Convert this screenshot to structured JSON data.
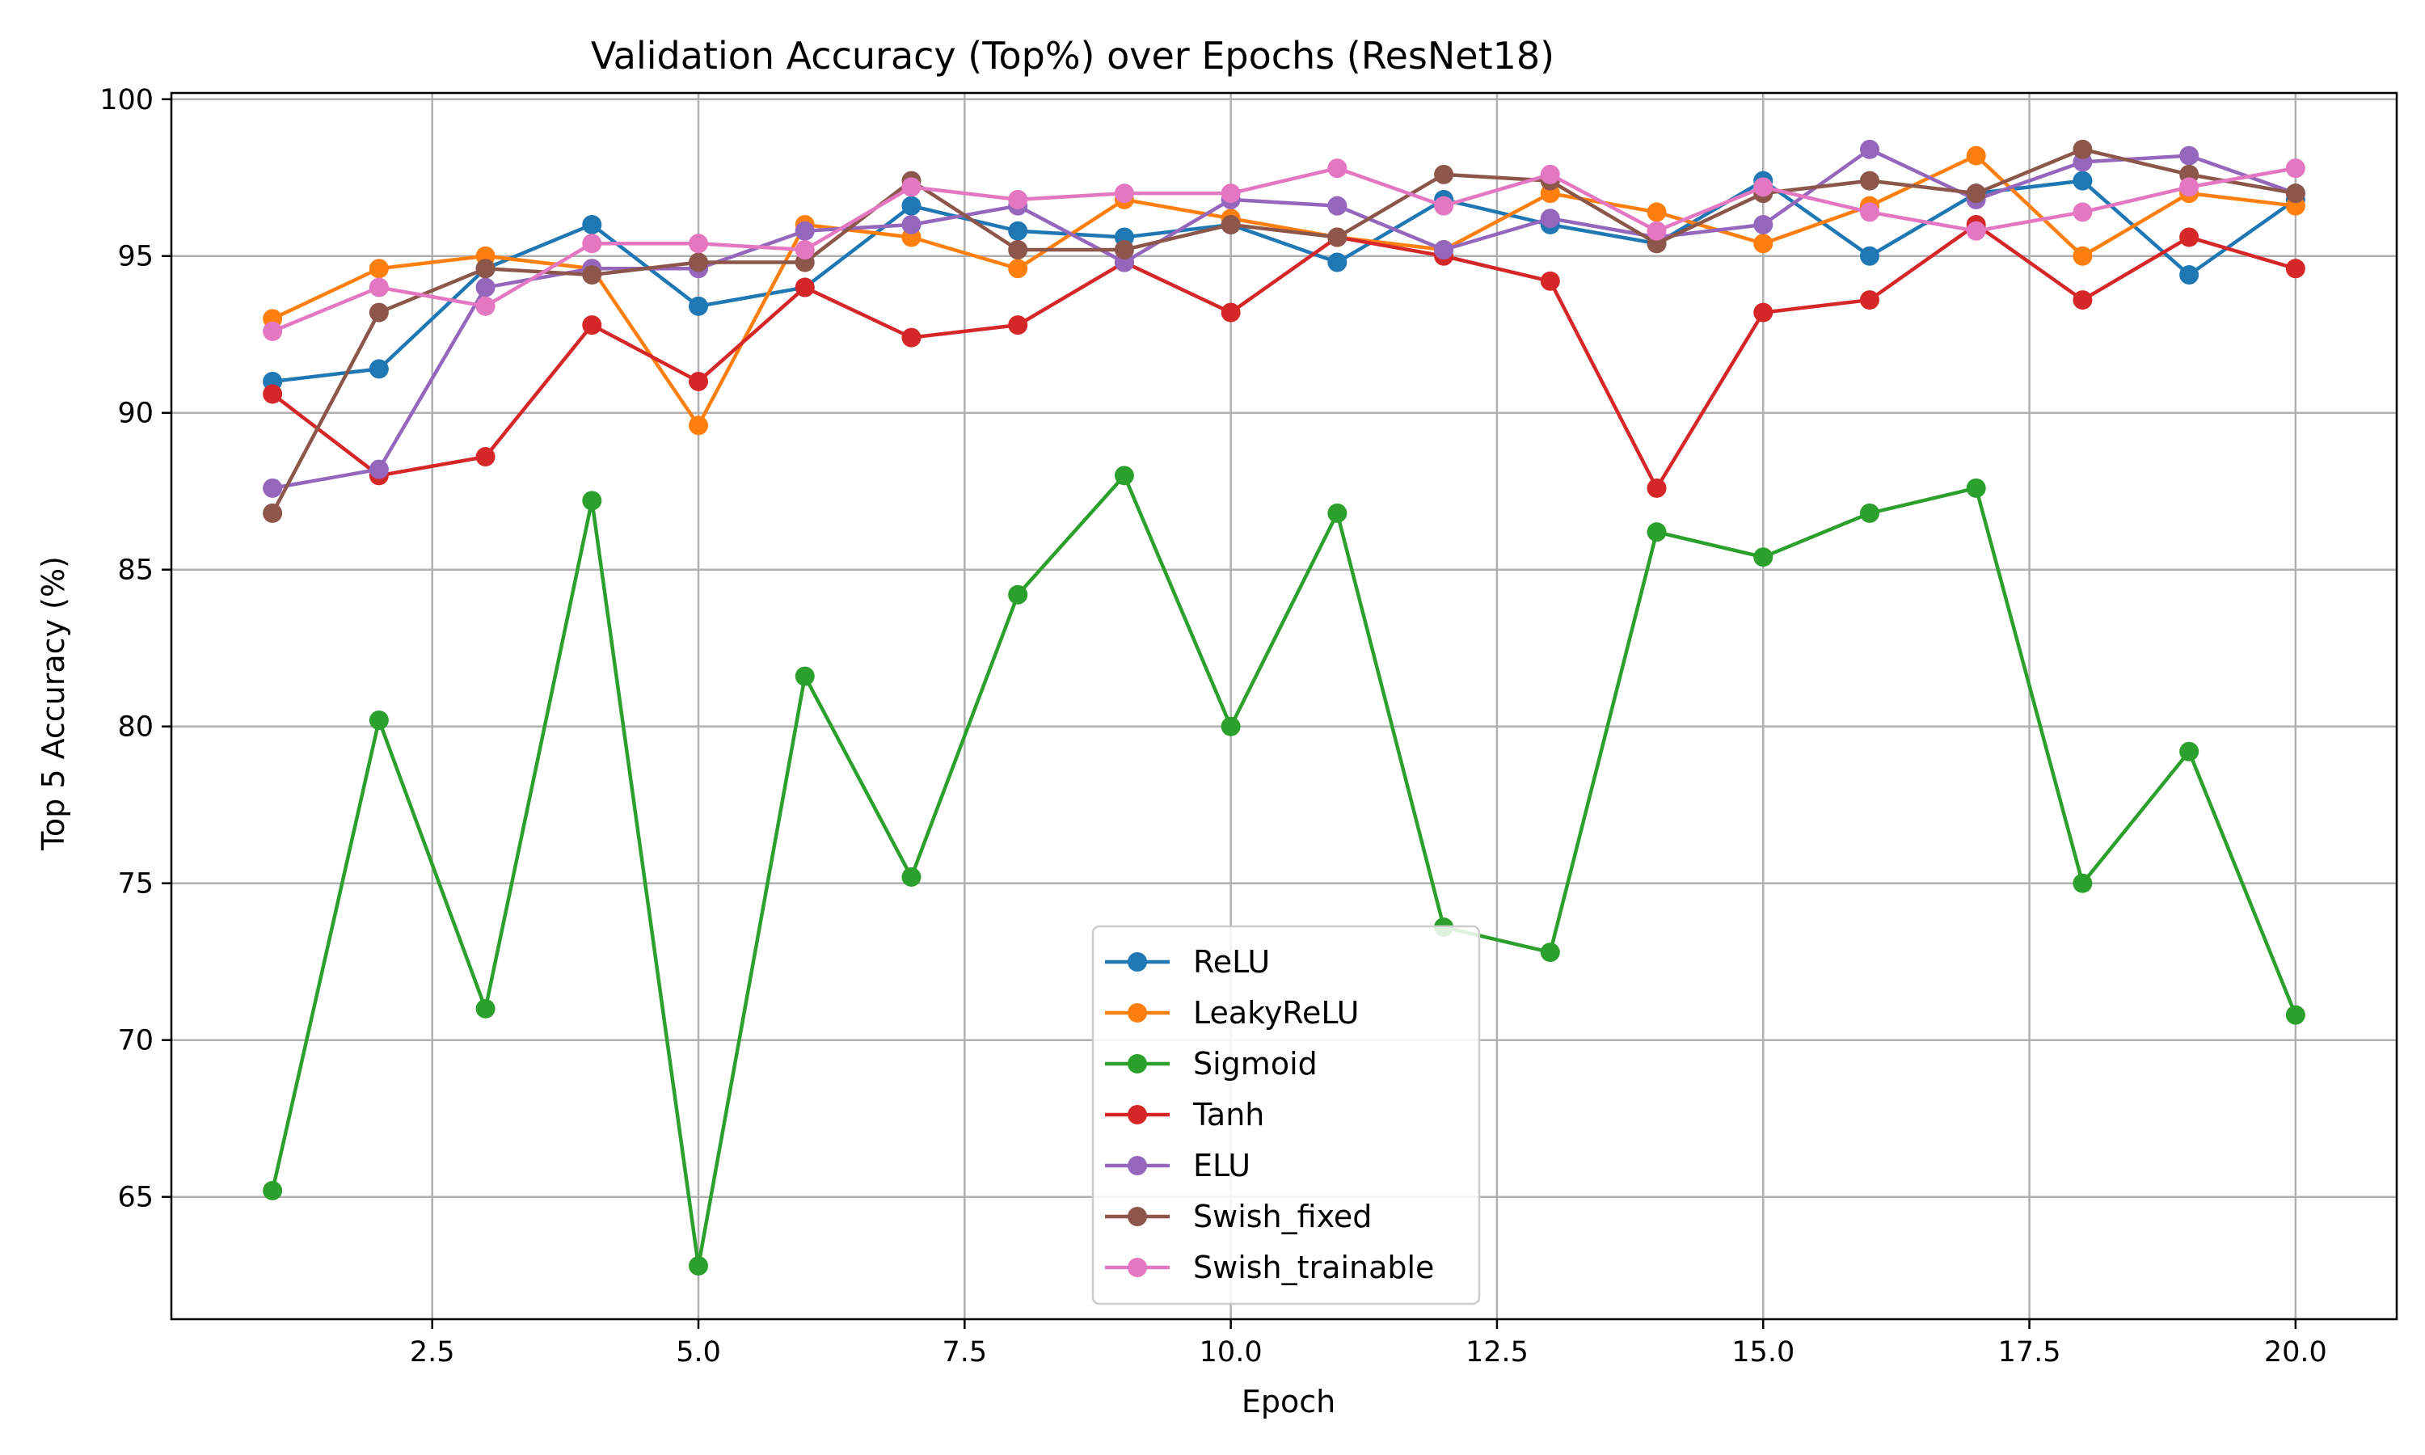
{
  "chart_data": {
    "type": "line",
    "title": "Validation Accuracy (Top%) over Epochs (ResNet18)",
    "xlabel": "Epoch",
    "ylabel": "Top 5 Accuracy (%)",
    "xlim": [
      0.05,
      20.95
    ],
    "ylim": [
      61.1,
      100.2
    ],
    "x_ticks": [
      2.5,
      5.0,
      7.5,
      10.0,
      12.5,
      15.0,
      17.5,
      20.0
    ],
    "x_tick_labels": [
      "2.5",
      "5.0",
      "7.5",
      "10.0",
      "12.5",
      "15.0",
      "17.5",
      "20.0"
    ],
    "y_ticks": [
      65,
      70,
      75,
      80,
      85,
      90,
      95,
      100
    ],
    "y_tick_labels": [
      "65",
      "70",
      "75",
      "80",
      "85",
      "90",
      "95",
      "100"
    ],
    "grid": true,
    "legend_position": "lower-center",
    "x": [
      1,
      2,
      3,
      4,
      5,
      6,
      7,
      8,
      9,
      10,
      11,
      12,
      13,
      14,
      15,
      16,
      17,
      18,
      19,
      20
    ],
    "series": [
      {
        "name": "ReLU",
        "color": "#1f77b4",
        "values": [
          91.0,
          91.4,
          94.6,
          96.0,
          93.4,
          94.0,
          96.6,
          95.8,
          95.6,
          96.0,
          94.8,
          96.8,
          96.0,
          95.4,
          97.4,
          95.0,
          97.0,
          97.4,
          94.4,
          96.8
        ]
      },
      {
        "name": "LeakyReLU",
        "color": "#ff7f0e",
        "values": [
          93.0,
          94.6,
          95.0,
          94.6,
          89.6,
          96.0,
          95.6,
          94.6,
          96.8,
          96.2,
          95.6,
          95.2,
          97.0,
          96.4,
          95.4,
          96.6,
          98.2,
          95.0,
          97.0,
          96.6
        ]
      },
      {
        "name": "Sigmoid",
        "color": "#2ca02c",
        "values": [
          65.2,
          80.2,
          71.0,
          87.2,
          62.8,
          81.6,
          75.2,
          84.2,
          88.0,
          80.0,
          86.8,
          73.6,
          72.8,
          86.2,
          85.4,
          86.8,
          87.6,
          75.0,
          79.2,
          70.8
        ]
      },
      {
        "name": "Tanh",
        "color": "#d62728",
        "values": [
          90.6,
          88.0,
          88.6,
          92.8,
          91.0,
          94.0,
          92.4,
          92.8,
          94.8,
          93.2,
          95.6,
          95.0,
          94.2,
          87.6,
          93.2,
          93.6,
          96.0,
          93.6,
          95.6,
          94.6
        ]
      },
      {
        "name": "ELU",
        "color": "#9467bd",
        "values": [
          87.6,
          88.2,
          94.0,
          94.6,
          94.6,
          95.8,
          96.0,
          96.6,
          94.8,
          96.8,
          96.6,
          95.2,
          96.2,
          95.6,
          96.0,
          98.4,
          96.8,
          98.0,
          98.2,
          97.0
        ]
      },
      {
        "name": "Swish_fixed",
        "color": "#8c564b",
        "values": [
          86.8,
          93.2,
          94.6,
          94.4,
          94.8,
          94.8,
          97.4,
          95.2,
          95.2,
          96.0,
          95.6,
          97.6,
          97.4,
          95.4,
          97.0,
          97.4,
          97.0,
          98.4,
          97.6,
          97.0
        ]
      },
      {
        "name": "Swish_trainable",
        "color": "#e377c2",
        "values": [
          92.6,
          94.0,
          93.4,
          95.4,
          95.4,
          95.2,
          97.2,
          96.8,
          97.0,
          97.0,
          97.8,
          96.6,
          97.6,
          95.8,
          97.2,
          96.4,
          95.8,
          96.4,
          97.2,
          97.8
        ]
      }
    ]
  }
}
